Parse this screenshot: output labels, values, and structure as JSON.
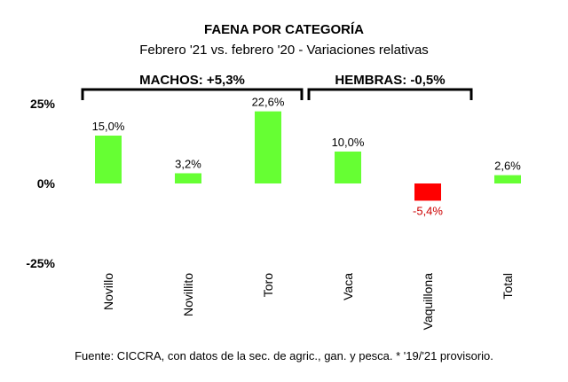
{
  "chart_data": {
    "type": "bar",
    "title": "FAENA POR CATEGORÍA",
    "subtitle": "Febrero '21 vs. febrero '20 - Variaciones relativas",
    "categories": [
      "Novillo",
      "Novillito",
      "Toro",
      "Vaca",
      "Vaquillona",
      "Total"
    ],
    "values": [
      15.0,
      3.2,
      22.6,
      10.0,
      -5.4,
      2.6
    ],
    "data_labels": [
      "15,0%",
      "3,2%",
      "22,6%",
      "10,0%",
      "-5,4%",
      "2,6%"
    ],
    "ylim": [
      -25,
      25
    ],
    "yticks": [
      {
        "value": 25,
        "label": "25%"
      },
      {
        "value": 0,
        "label": "0%"
      },
      {
        "value": -25,
        "label": "-25%"
      }
    ],
    "groups": [
      {
        "label": "MACHOS: +5,3%",
        "from": 0,
        "to": 2
      },
      {
        "label": "HEMBRAS: -0,5%",
        "from": 3,
        "to": 4
      }
    ],
    "grid": false,
    "legend": "none",
    "colors": {
      "positive": "#66ff33",
      "negative": "#ff0000",
      "negative_label": "#cc0000"
    }
  },
  "source": "Fuente: CICCRA, con datos de la sec. de agric., gan. y pesca. * '19/'21 provisorio."
}
